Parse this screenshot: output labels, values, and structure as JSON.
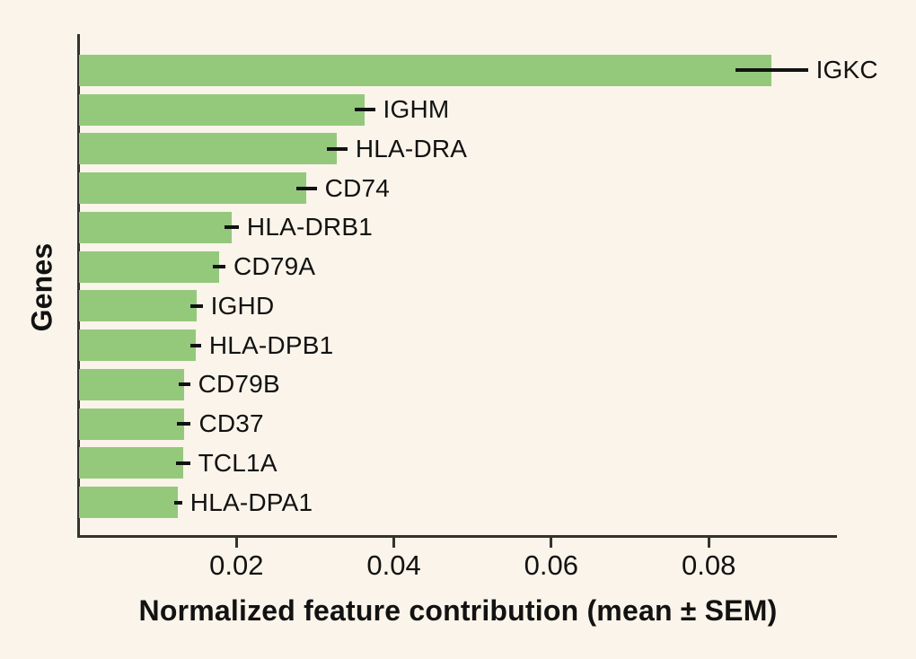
{
  "figure": {
    "background_color": "#faf4ea",
    "bar_color": "#94c97c",
    "axis_color": "#35322e",
    "text_color": "#121212"
  },
  "chart_data": {
    "type": "bar",
    "orientation": "horizontal",
    "title": "",
    "xlabel": "Normalized feature contribution (mean ± SEM)",
    "ylabel": "Genes",
    "xlim": [
      0,
      0.0963
    ],
    "xticks": [
      0.02,
      0.04,
      0.06,
      0.08
    ],
    "xtick_labels": [
      "0.02",
      "0.04",
      "0.06",
      "0.08"
    ],
    "grid": false,
    "legend": null,
    "error_bars": "sem",
    "categories": [
      "IGKC",
      "IGHM",
      "HLA-DRA",
      "CD74",
      "HLA-DRB1",
      "CD79A",
      "IGHD",
      "HLA-DPB1",
      "CD79B",
      "CD37",
      "TCL1A",
      "HLA-DPA1"
    ],
    "values": [
      0.088,
      0.0363,
      0.0328,
      0.0289,
      0.0194,
      0.0178,
      0.0149,
      0.0148,
      0.0134,
      0.0133,
      0.0132,
      0.0126
    ],
    "sem": [
      0.0046,
      0.0013,
      0.0013,
      0.0013,
      0.0009,
      0.0008,
      0.0008,
      0.0007,
      0.0007,
      0.0009,
      0.0009,
      0.0005
    ]
  }
}
